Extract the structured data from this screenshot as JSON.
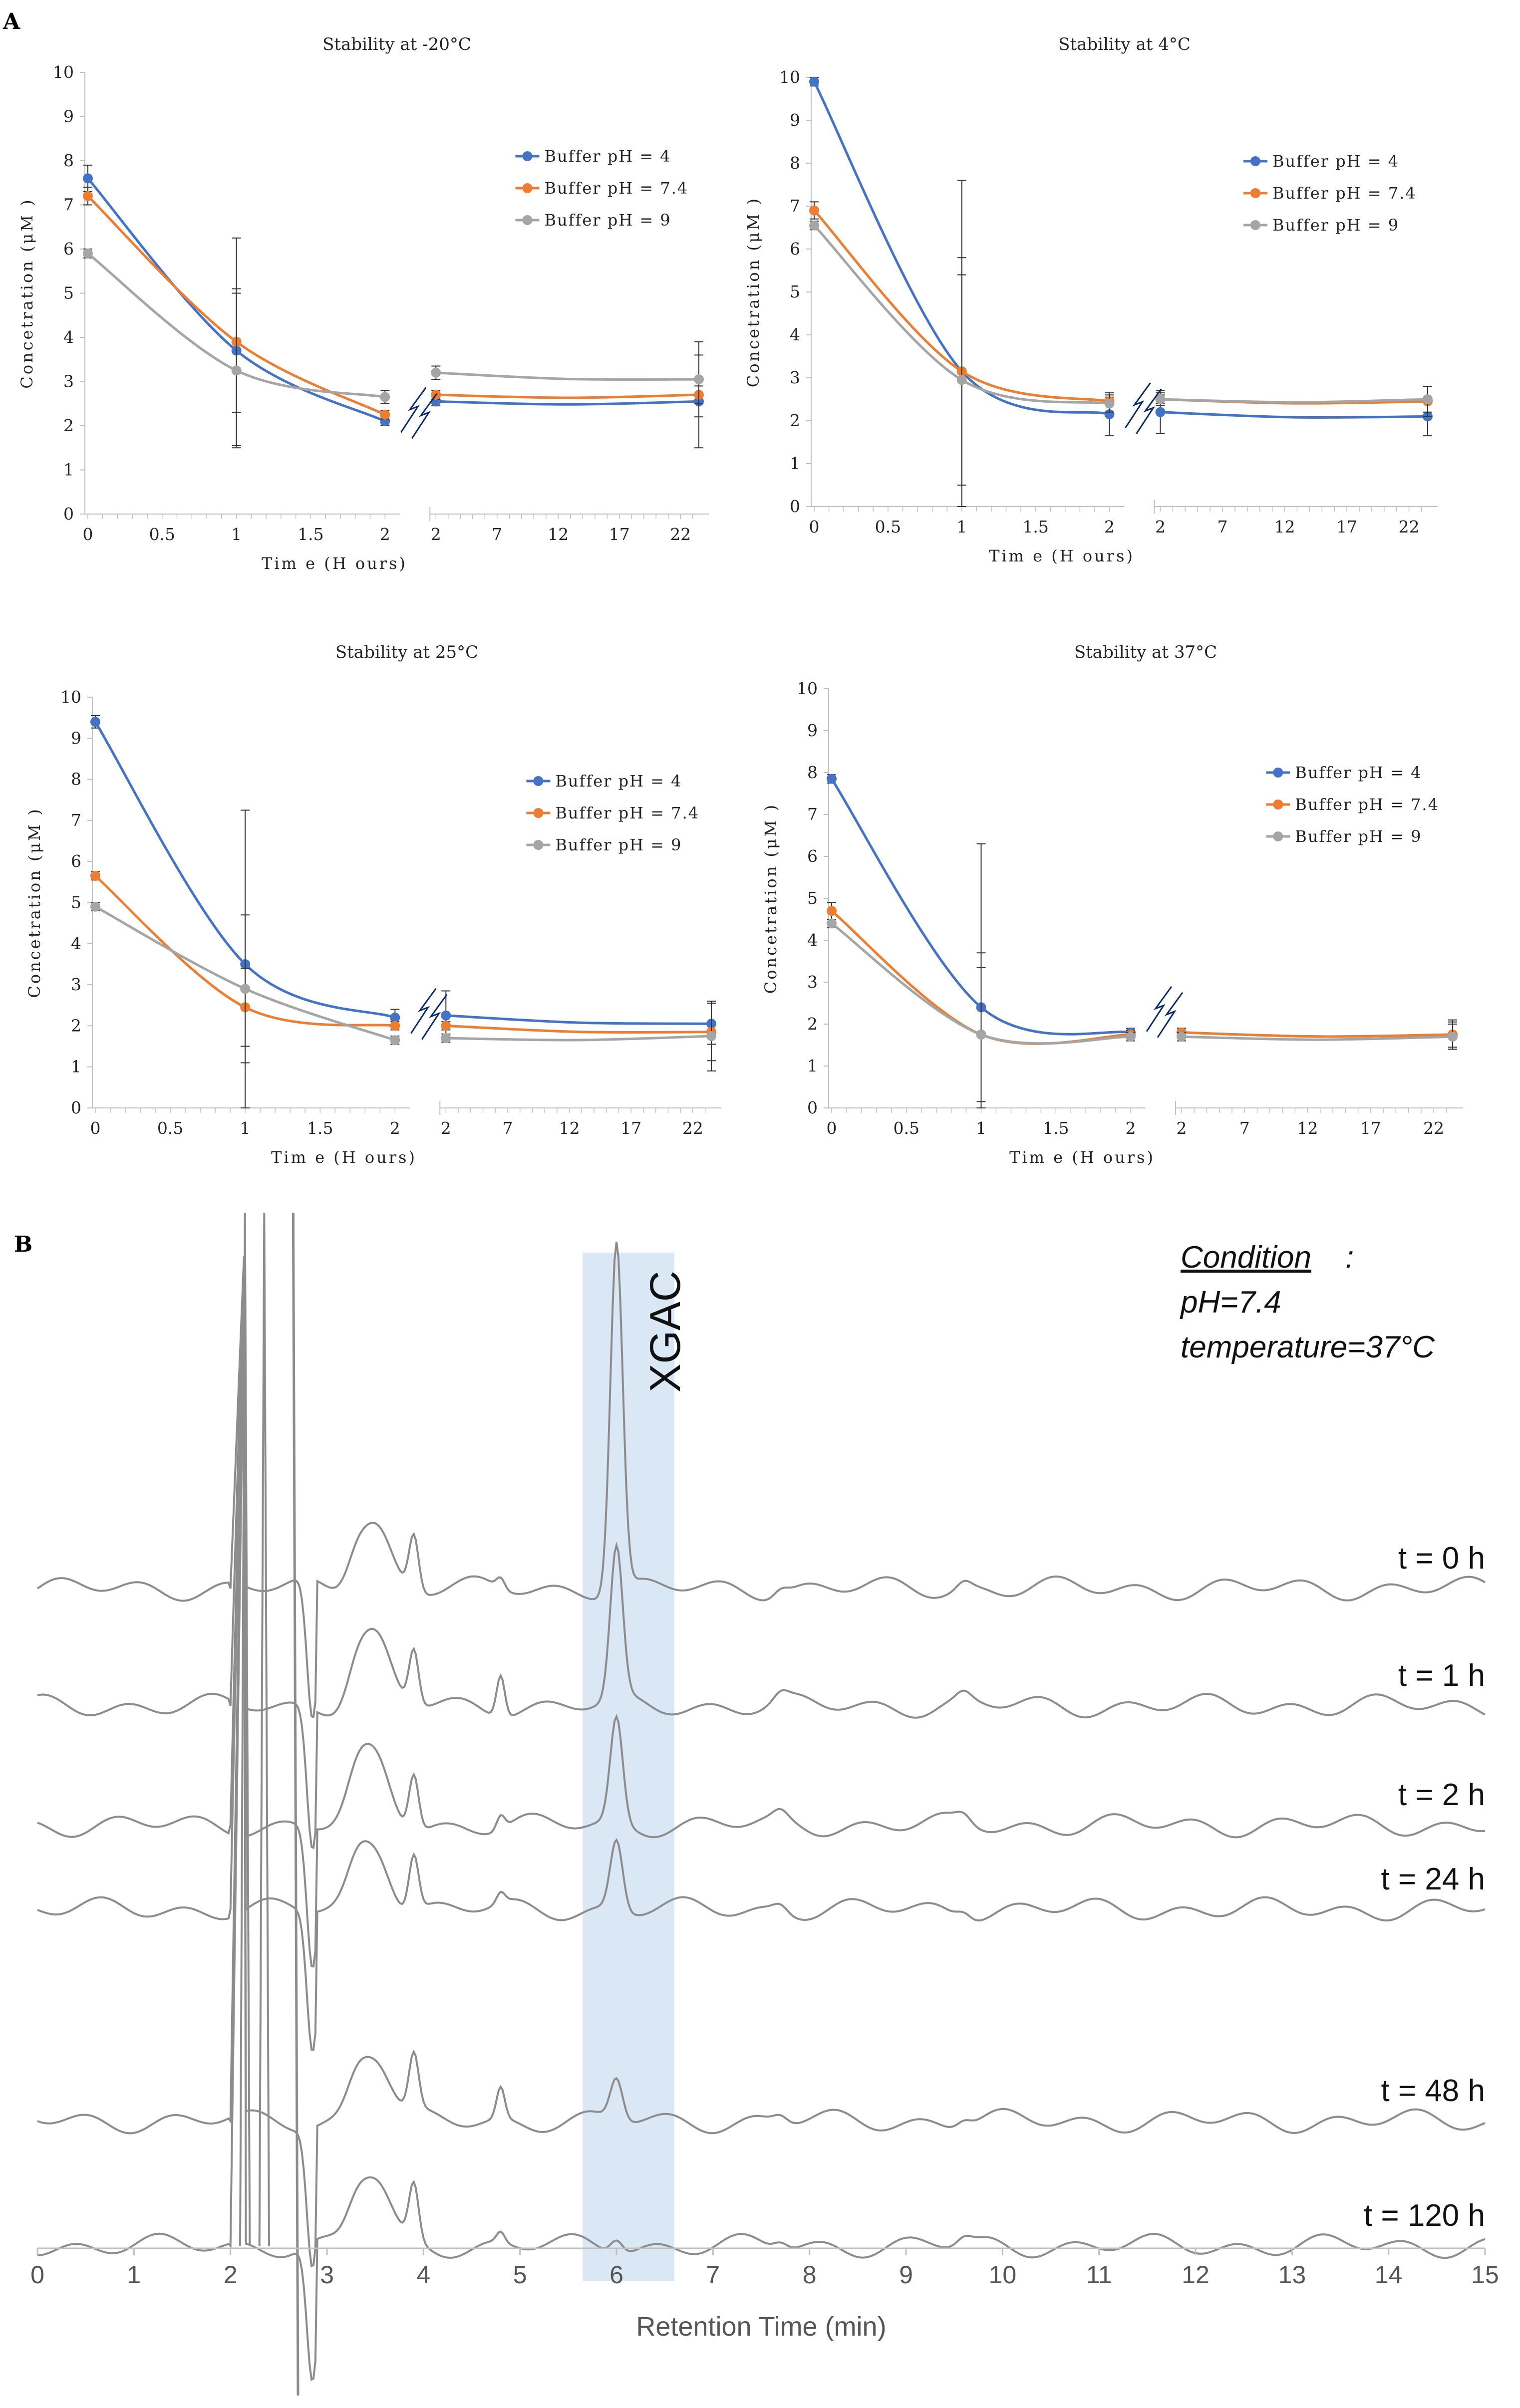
{
  "panel_a_label": "A",
  "panel_b_label": "B",
  "colors": {
    "ph4": "#4472C4",
    "ph74": "#ED7D31",
    "ph9": "#A5A5A5",
    "highlight": "#DAE8F5",
    "trace": "#8C8C8C"
  },
  "chart_data": [
    {
      "type": "line",
      "title": "Stability at -20°C",
      "xlabel": "Tim e (H ours)",
      "ylabel": "Concetration (μM )",
      "ylim": [
        0,
        10
      ],
      "y_ticks": [
        "0",
        "1",
        "2",
        "3",
        "4",
        "5",
        "6",
        "7",
        "8",
        "9",
        "10"
      ],
      "x_left_ticks": [
        "0",
        "0.5",
        "1",
        "1.5",
        "2"
      ],
      "x_right_ticks": [
        "2",
        "7",
        "12",
        "17",
        "22"
      ],
      "legend_position": "top-right",
      "series": [
        {
          "name": "Buffer pH = 4",
          "left": [
            [
              0,
              7.6
            ],
            [
              1,
              3.7
            ],
            [
              2,
              2.1
            ]
          ],
          "right": [
            [
              2,
              2.55
            ],
            [
              23.5,
              2.55
            ]
          ],
          "err_left": [
            0.3,
            1.4,
            0.1
          ],
          "err_right": [
            0.1,
            1.05
          ]
        },
        {
          "name": "Buffer pH = 7.4",
          "left": [
            [
              0,
              7.2
            ],
            [
              1,
              3.9
            ],
            [
              2,
              2.25
            ]
          ],
          "right": [
            [
              2,
              2.7
            ],
            [
              23.5,
              2.7
            ]
          ],
          "err_left": [
            0.2,
            2.35,
            0.1
          ],
          "err_right": [
            0.1,
            0.2
          ]
        },
        {
          "name": "Buffer pH = 9",
          "left": [
            [
              0,
              5.9
            ],
            [
              1,
              3.25
            ],
            [
              2,
              2.65
            ]
          ],
          "right": [
            [
              2,
              3.2
            ],
            [
              23.5,
              3.05
            ]
          ],
          "err_left": [
            0.1,
            1.75,
            0.15
          ],
          "err_right": [
            0.15,
            0.85
          ]
        }
      ]
    },
    {
      "type": "line",
      "title": "Stability at 4°C",
      "xlabel": "Tim e (H ours)",
      "ylabel": "Concetration (μM )",
      "ylim": [
        0,
        10
      ],
      "y_ticks": [
        "0",
        "1",
        "2",
        "3",
        "4",
        "5",
        "6",
        "7",
        "8",
        "9",
        "10"
      ],
      "x_left_ticks": [
        "0",
        "0.5",
        "1",
        "1.5",
        "2"
      ],
      "x_right_ticks": [
        "2",
        "7",
        "12",
        "17",
        "22"
      ],
      "legend_position": "top-right",
      "series": [
        {
          "name": "Buffer pH = 4",
          "left": [
            [
              0,
              9.9
            ],
            [
              1,
              3.15
            ],
            [
              2,
              2.15
            ]
          ],
          "right": [
            [
              2,
              2.2
            ],
            [
              23.5,
              2.1
            ]
          ],
          "err_left": [
            0.1,
            4.45,
            0.5
          ],
          "err_right": [
            0.5,
            0.45
          ]
        },
        {
          "name": "Buffer pH = 7.4",
          "left": [
            [
              0,
              6.9
            ],
            [
              1,
              3.15
            ],
            [
              2,
              2.45
            ]
          ],
          "right": [
            [
              2,
              2.5
            ],
            [
              23.5,
              2.45
            ]
          ],
          "err_left": [
            0.2,
            2.65,
            0.1
          ],
          "err_right": [
            0.15,
            0.35
          ]
        },
        {
          "name": "Buffer pH = 9",
          "left": [
            [
              0,
              6.55
            ],
            [
              1,
              2.95
            ],
            [
              2,
              2.4
            ]
          ],
          "right": [
            [
              2,
              2.5
            ],
            [
              23.5,
              2.5
            ]
          ],
          "err_left": [
            0.1,
            2.45,
            0.2
          ],
          "err_right": [
            0.1,
            0.3
          ]
        }
      ]
    },
    {
      "type": "line",
      "title": "Stability at 25°C",
      "xlabel": "Tim e (H ours)",
      "ylabel": "Concetration (μM )",
      "ylim": [
        0,
        10
      ],
      "y_ticks": [
        "0",
        "1",
        "2",
        "3",
        "4",
        "5",
        "6",
        "7",
        "8",
        "9",
        "10"
      ],
      "x_left_ticks": [
        "0",
        "0.5",
        "1",
        "1.5",
        "2"
      ],
      "x_right_ticks": [
        "2",
        "7",
        "12",
        "17",
        "22"
      ],
      "legend_position": "top-right",
      "series": [
        {
          "name": "Buffer pH = 4",
          "left": [
            [
              0,
              9.4
            ],
            [
              1,
              3.5
            ],
            [
              2,
              2.2
            ]
          ],
          "right": [
            [
              2,
              2.25
            ],
            [
              23.5,
              2.05
            ]
          ],
          "err_left": [
            0.15,
            3.75,
            0.2
          ],
          "err_right": [
            0.6,
            0.5
          ]
        },
        {
          "name": "Buffer pH = 7.4",
          "left": [
            [
              0,
              5.65
            ],
            [
              1,
              2.45
            ],
            [
              2,
              2.0
            ]
          ],
          "right": [
            [
              2,
              2.0
            ],
            [
              23.5,
              1.85
            ]
          ],
          "err_left": [
            0.1,
            0.95,
            0.1
          ],
          "err_right": [
            0.1,
            0.7
          ]
        },
        {
          "name": "Buffer pH = 9",
          "left": [
            [
              0,
              4.9
            ],
            [
              1,
              2.9
            ],
            [
              2,
              1.65
            ]
          ],
          "right": [
            [
              2,
              1.7
            ],
            [
              23.5,
              1.75
            ]
          ],
          "err_left": [
            0.1,
            1.8,
            0.1
          ],
          "err_right": [
            0.1,
            0.85
          ]
        }
      ]
    },
    {
      "type": "line",
      "title": "Stability at 37°C",
      "xlabel": "Tim e (H ours)",
      "ylabel": "Concetration (μM )",
      "ylim": [
        0,
        10
      ],
      "y_ticks": [
        "0",
        "1",
        "2",
        "3",
        "4",
        "5",
        "6",
        "7",
        "8",
        "9",
        "10"
      ],
      "x_left_ticks": [
        "0",
        "0.5",
        "1",
        "1.5",
        "2"
      ],
      "x_right_ticks": [
        "2",
        "7",
        "12",
        "17",
        "22"
      ],
      "legend_position": "top-right",
      "series": [
        {
          "name": "Buffer pH = 4",
          "left": [
            [
              0,
              7.85
            ],
            [
              1,
              2.4
            ],
            [
              2,
              1.8
            ]
          ],
          "right": [
            [
              2,
              1.8
            ],
            [
              23.5,
              1.75
            ]
          ],
          "err_left": [
            0.1,
            3.9,
            0.1
          ],
          "err_right": [
            0.1,
            0.35
          ]
        },
        {
          "name": "Buffer pH = 7.4",
          "left": [
            [
              0,
              4.7
            ],
            [
              1,
              1.75
            ],
            [
              2,
              1.75
            ]
          ],
          "right": [
            [
              2,
              1.8
            ],
            [
              23.5,
              1.75
            ]
          ],
          "err_left": [
            0.2,
            1.95,
            0.1
          ],
          "err_right": [
            0.1,
            0.3
          ]
        },
        {
          "name": "Buffer pH = 9",
          "left": [
            [
              0,
              4.4
            ],
            [
              1,
              1.75
            ],
            [
              2,
              1.7
            ]
          ],
          "right": [
            [
              2,
              1.7
            ],
            [
              23.5,
              1.7
            ]
          ],
          "err_left": [
            0.1,
            1.6,
            0.1
          ],
          "err_right": [
            0.1,
            0.3
          ]
        }
      ]
    },
    {
      "type": "line",
      "title": "",
      "xlabel": "Retention Time (min)",
      "xlim": [
        0,
        15
      ],
      "x_ticks": [
        "0",
        "1",
        "2",
        "3",
        "4",
        "5",
        "6",
        "7",
        "8",
        "9",
        "10",
        "11",
        "12",
        "13",
        "14",
        "15"
      ],
      "highlight_band": [
        5.65,
        6.6
      ],
      "highlight_label": "XGAC",
      "peak_label": "XGAC",
      "condition": {
        "title": "Condition",
        "colon": ":",
        "ph": "pH=7.4",
        "temperature": "temperature=37°C"
      },
      "traces": [
        {
          "label": "t = 0 h",
          "xgac_peak": 1.0,
          "peak_48": 0.03
        },
        {
          "label": "t = 1 h",
          "xgac_peak": 0.43,
          "peak_48": 0.12
        },
        {
          "label": "t = 2 h",
          "xgac_peak": 0.3,
          "peak_48": 0.04
        },
        {
          "label": "t = 24 h",
          "xgac_peak": 0.2,
          "peak_48": 0.03
        },
        {
          "label": "t = 48 h",
          "xgac_peak": 0.12,
          "peak_48": 0.09
        },
        {
          "label": "t = 120 h",
          "xgac_peak": 0.04,
          "peak_48": 0.03
        }
      ]
    }
  ]
}
